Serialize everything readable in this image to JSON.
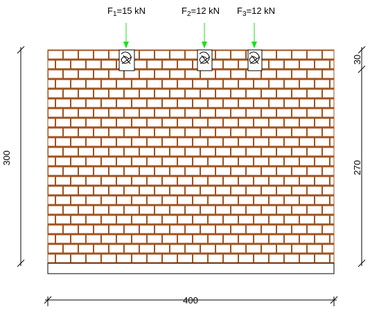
{
  "loads": [
    {
      "symbol": "F",
      "index": "1",
      "text": "=15 kN"
    },
    {
      "symbol": "F",
      "index": "2",
      "text": "=12 kN"
    },
    {
      "symbol": "F",
      "index": "3",
      "text": "=12 kN"
    }
  ],
  "dimensions": {
    "height": "300",
    "top": "30",
    "wall_height": "270",
    "width": "400"
  }
}
